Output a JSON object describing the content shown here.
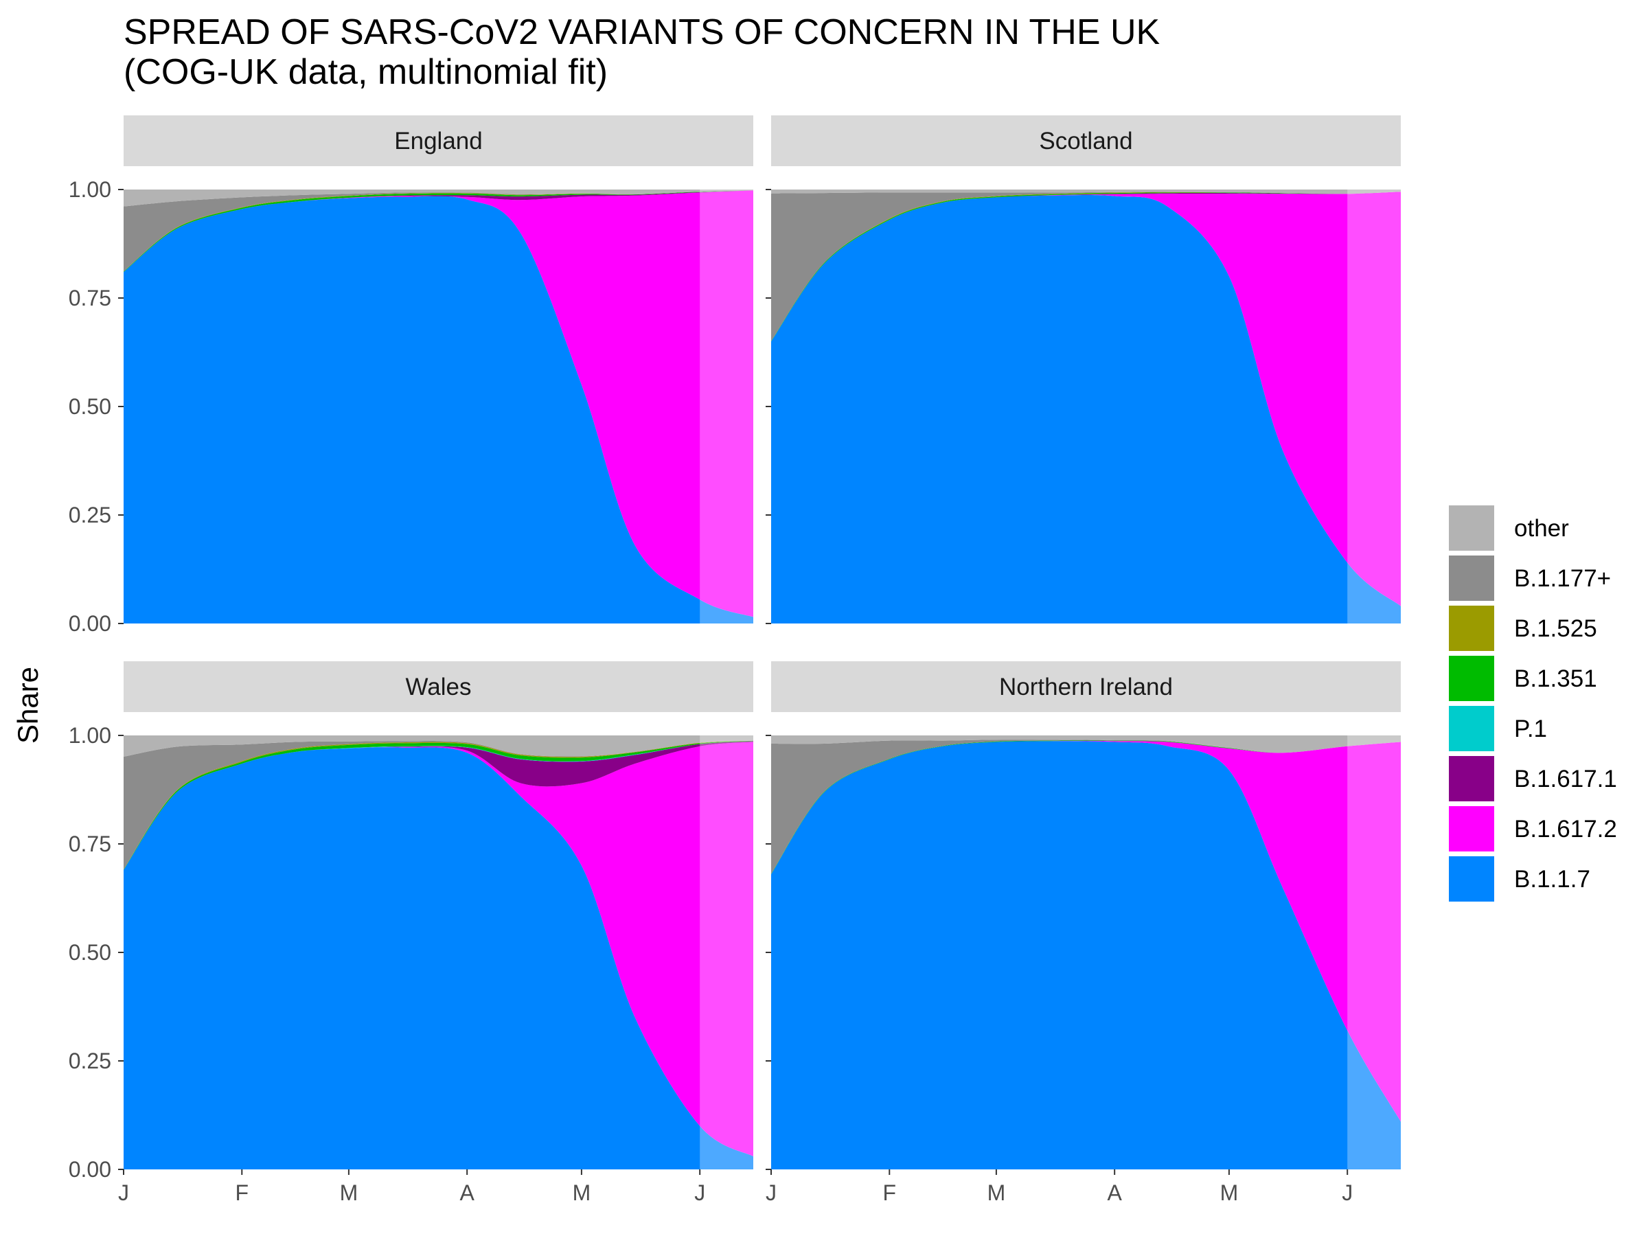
{
  "chart_data": {
    "type": "area",
    "title_line1": "SPREAD OF SARS-CoV2 VARIANTS OF CONCERN IN THE UK",
    "title_line2": "(COG-UK data, multinomial fit)",
    "xlabel": "",
    "ylabel": "Share",
    "ylim": [
      0,
      1
    ],
    "y_ticks": [
      "0.00",
      "0.25",
      "0.50",
      "0.75",
      "1.00"
    ],
    "x_ticks": [
      {
        "label": "J",
        "date": "2021-01-01"
      },
      {
        "label": "F",
        "date": "2021-02-01"
      },
      {
        "label": "M",
        "date": "2021-03-01"
      },
      {
        "label": "A",
        "date": "2021-04-01"
      },
      {
        "label": "M",
        "date": "2021-05-01"
      },
      {
        "label": "J",
        "date": "2021-06-01"
      }
    ],
    "x_range": [
      "2021-01-01",
      "2021-06-15"
    ],
    "prediction_start": "2021-06-01",
    "stacked": true,
    "legend_position": "right",
    "legend_order": [
      "other",
      "B.1.177+",
      "B.1.525",
      "B.1.351",
      "P.1",
      "B.1.617.1",
      "B.1.617.2",
      "B.1.1.7"
    ],
    "stack_order_bottom_to_top": [
      "B.1.1.7",
      "B.1.617.2",
      "B.1.617.1",
      "P.1",
      "B.1.351",
      "B.1.525",
      "B.1.177+",
      "other"
    ],
    "colors": {
      "other": "#B3B3B3",
      "B.1.177+": "#8C8C8C",
      "B.1.525": "#9B9B00",
      "B.1.351": "#00BB00",
      "P.1": "#00CCCC",
      "B.1.617.1": "#880088",
      "B.1.617.2": "#FF00FF",
      "B.1.1.7": "#0085FF"
    },
    "dates": [
      "2021-01-01",
      "2021-01-15",
      "2021-02-01",
      "2021-02-15",
      "2021-03-01",
      "2021-03-15",
      "2021-04-01",
      "2021-04-15",
      "2021-05-01",
      "2021-05-15",
      "2021-06-01",
      "2021-06-15"
    ],
    "panels": [
      {
        "name": "England",
        "series": [
          {
            "name": "B.1.1.7",
            "values": [
              0.81,
              0.91,
              0.955,
              0.972,
              0.98,
              0.983,
              0.977,
              0.9,
              0.55,
              0.18,
              0.055,
              0.015
            ]
          },
          {
            "name": "B.1.617.2",
            "values": [
              0,
              0,
              0,
              0,
              0.001,
              0.002,
              0.006,
              0.076,
              0.434,
              0.806,
              0.938,
              0.983
            ]
          },
          {
            "name": "B.1.617.1",
            "values": [
              0,
              0,
              0,
              0,
              0,
              0.001,
              0.004,
              0.008,
              0.004,
              0.002,
              0.001,
              0
            ]
          },
          {
            "name": "P.1",
            "values": [
              0,
              0,
              0,
              0,
              0,
              0,
              0,
              0,
              0,
              0,
              0,
              0
            ]
          },
          {
            "name": "B.1.351",
            "values": [
              0.001,
              0.002,
              0.003,
              0.004,
              0.004,
              0.004,
              0.004,
              0.003,
              0.002,
              0.001,
              0.001,
              0
            ]
          },
          {
            "name": "B.1.525",
            "values": [
              0,
              0.001,
              0.001,
              0.001,
              0.001,
              0.001,
              0.001,
              0.001,
              0.001,
              0,
              0,
              0
            ]
          },
          {
            "name": "B.1.177+",
            "values": [
              0.15,
              0.06,
              0.023,
              0.01,
              0.004,
              0.002,
              0.001,
              0.001,
              0,
              0,
              0,
              0
            ]
          },
          {
            "name": "other",
            "values": [
              0.039,
              0.027,
              0.018,
              0.013,
              0.01,
              0.007,
              0.007,
              0.011,
              0.009,
              0.011,
              0.005,
              0.002
            ]
          }
        ]
      },
      {
        "name": "Scotland",
        "series": [
          {
            "name": "B.1.1.7",
            "values": [
              0.65,
              0.83,
              0.93,
              0.97,
              0.982,
              0.986,
              0.985,
              0.96,
              0.8,
              0.4,
              0.14,
              0.04
            ]
          },
          {
            "name": "B.1.617.2",
            "values": [
              0,
              0,
              0,
              0,
              0,
              0.001,
              0.004,
              0.03,
              0.19,
              0.59,
              0.85,
              0.955
            ]
          },
          {
            "name": "B.1.617.1",
            "values": [
              0,
              0,
              0,
              0,
              0,
              0,
              0.001,
              0.002,
              0.002,
              0.001,
              0,
              0
            ]
          },
          {
            "name": "P.1",
            "values": [
              0,
              0,
              0,
              0,
              0,
              0,
              0,
              0,
              0,
              0,
              0,
              0
            ]
          },
          {
            "name": "B.1.351",
            "values": [
              0.001,
              0.002,
              0.002,
              0.002,
              0.002,
              0.002,
              0.002,
              0.001,
              0.001,
              0.001,
              0,
              0
            ]
          },
          {
            "name": "B.1.525",
            "values": [
              0,
              0,
              0.001,
              0.001,
              0.001,
              0.001,
              0.001,
              0.001,
              0,
              0,
              0,
              0
            ]
          },
          {
            "name": "B.1.177+",
            "values": [
              0.34,
              0.16,
              0.06,
              0.02,
              0.008,
              0.003,
              0.001,
              0.001,
              0,
              0,
              0,
              0
            ]
          },
          {
            "name": "other",
            "values": [
              0.009,
              0.008,
              0.007,
              0.007,
              0.007,
              0.007,
              0.006,
              0.005,
              0.007,
              0.008,
              0.01,
              0.005
            ]
          }
        ]
      },
      {
        "name": "Wales",
        "series": [
          {
            "name": "B.1.1.7",
            "values": [
              0.69,
              0.87,
              0.935,
              0.962,
              0.97,
              0.972,
              0.96,
              0.86,
              0.7,
              0.35,
              0.1,
              0.03
            ]
          },
          {
            "name": "B.1.617.2",
            "values": [
              0,
              0,
              0,
              0,
              0,
              0.001,
              0.005,
              0.03,
              0.19,
              0.585,
              0.875,
              0.955
            ]
          },
          {
            "name": "B.1.617.1",
            "values": [
              0,
              0,
              0,
              0,
              0,
              0.001,
              0.007,
              0.055,
              0.05,
              0.02,
              0.005,
              0.002
            ]
          },
          {
            "name": "P.1",
            "values": [
              0,
              0,
              0,
              0,
              0.001,
              0.001,
              0.001,
              0.001,
              0.001,
              0.001,
              0,
              0
            ]
          },
          {
            "name": "B.1.351",
            "values": [
              0.001,
              0.003,
              0.004,
              0.006,
              0.007,
              0.007,
              0.007,
              0.008,
              0.008,
              0.005,
              0.002,
              0.001
            ]
          },
          {
            "name": "B.1.525",
            "values": [
              0,
              0.001,
              0.002,
              0.002,
              0.002,
              0.002,
              0.002,
              0.002,
              0.002,
              0.001,
              0.001,
              0
            ]
          },
          {
            "name": "B.1.177+",
            "values": [
              0.26,
              0.1,
              0.038,
              0.015,
              0.006,
              0.003,
              0.002,
              0.001,
              0.001,
              0,
              0,
              0
            ]
          },
          {
            "name": "other",
            "values": [
              0.049,
              0.026,
              0.021,
              0.015,
              0.014,
              0.013,
              0.016,
              0.043,
              0.048,
              0.038,
              0.017,
              0.012
            ]
          }
        ]
      },
      {
        "name": "Northern Ireland",
        "series": [
          {
            "name": "B.1.1.7",
            "values": [
              0.68,
              0.87,
              0.945,
              0.975,
              0.985,
              0.987,
              0.985,
              0.975,
              0.92,
              0.65,
              0.32,
              0.11
            ]
          },
          {
            "name": "B.1.617.2",
            "values": [
              0,
              0,
              0,
              0,
              0,
              0,
              0.002,
              0.01,
              0.05,
              0.31,
              0.655,
              0.875
            ]
          },
          {
            "name": "B.1.617.1",
            "values": [
              0,
              0,
              0,
              0,
              0,
              0,
              0,
              0,
              0,
              0,
              0,
              0
            ]
          },
          {
            "name": "P.1",
            "values": [
              0,
              0,
              0,
              0,
              0,
              0,
              0,
              0,
              0,
              0,
              0,
              0
            ]
          },
          {
            "name": "B.1.351",
            "values": [
              0.001,
              0.001,
              0.001,
              0.001,
              0.001,
              0.001,
              0.001,
              0.001,
              0.001,
              0,
              0,
              0
            ]
          },
          {
            "name": "B.1.525",
            "values": [
              0,
              0,
              0,
              0,
              0,
              0,
              0,
              0,
              0,
              0,
              0,
              0
            ]
          },
          {
            "name": "B.1.177+",
            "values": [
              0.3,
              0.11,
              0.042,
              0.012,
              0.004,
              0.002,
              0.001,
              0.001,
              0,
              0,
              0,
              0
            ]
          },
          {
            "name": "other",
            "values": [
              0.019,
              0.019,
              0.012,
              0.012,
              0.01,
              0.01,
              0.011,
              0.013,
              0.029,
              0.04,
              0.025,
              0.015
            ]
          }
        ]
      }
    ]
  }
}
